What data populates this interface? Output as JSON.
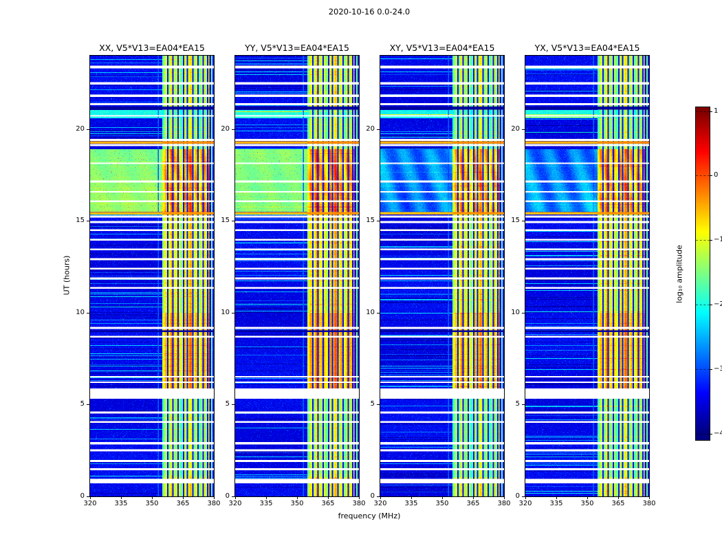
{
  "chart_data": {
    "type": "heatmap",
    "title": "2020-10-16 0.0-24.0",
    "xlabel": "frequency (MHz)",
    "ylabel": "UT (hours)",
    "x_range": [
      320,
      380
    ],
    "x_ticks": [
      320,
      335,
      350,
      365,
      380
    ],
    "y_range": [
      0,
      24
    ],
    "y_ticks": [
      0,
      5,
      10,
      15,
      20
    ],
    "value_range": [
      -4,
      1
    ],
    "colormap": "jet",
    "colorbar": {
      "label": "log₁₀ amplitude",
      "ticks": [
        "1",
        "0",
        "−1",
        "−2",
        "−3",
        "−4"
      ],
      "tick_values": [
        1,
        0,
        -1,
        -2,
        -3,
        -4
      ]
    },
    "panels": [
      {
        "id": "XX",
        "title": "XX, V5*V13=EA04*EA15",
        "bright_band_level": -1.45,
        "band_offset": 0
      },
      {
        "id": "YY",
        "title": "YY, V5*V13=EA04*EA15",
        "bright_band_level": -1.45,
        "band_offset": 0.12
      },
      {
        "id": "XY",
        "title": "XY, V5*V13=EA04*EA15",
        "bright_band_level": -2.75,
        "band_offset": -0.08
      },
      {
        "id": "YX",
        "title": "YX, V5*V13=EA04*EA15",
        "bright_band_level": -2.7,
        "band_offset": 0
      }
    ],
    "background_level": -3.45,
    "noise_amp": 0.55,
    "rfi_band": {
      "f_start": 355.0,
      "f_end": 377.8,
      "segments": [
        [
          0,
          1.05,
          -1.05
        ],
        [
          1.05,
          5.88,
          -1.35
        ],
        [
          5.88,
          10.0,
          -0.6
        ],
        [
          10.0,
          15.45,
          -0.95
        ],
        [
          15.45,
          18.9,
          -0.5
        ],
        [
          18.9,
          20.6,
          -1.35
        ],
        [
          20.6,
          21.04,
          -1.65
        ],
        [
          21.04,
          24,
          -1.2
        ]
      ],
      "notches": [
        357.6,
        360.1,
        362.7,
        365.3,
        367.2,
        369.8,
        372.4,
        374.9,
        377.0
      ],
      "notch_width": 0.32,
      "notch_level": -3.3,
      "edge_line": [
        378.7,
        379.4,
        -1.6
      ],
      "faint_line": [
        352.9,
        353.4,
        -2.9
      ]
    },
    "bright_time_band": [
      15.5,
      18.9
    ],
    "cyan_band": {
      "range": [
        20.6,
        21.04
      ],
      "level": -2.05
    },
    "dark_lines": [
      [
        21.07,
        21.22
      ],
      [
        8.95,
        9.05
      ]
    ],
    "hot_lines": [
      [
        19.2,
        19.33,
        -0.5
      ],
      [
        15.36,
        15.49,
        -0.55
      ]
    ],
    "gaps": [
      [
        23.3,
        23.45
      ],
      [
        22.42,
        22.56
      ],
      [
        21.76,
        21.88
      ],
      [
        21.3,
        21.42
      ],
      [
        20.68,
        20.76
      ],
      [
        19.35,
        19.47
      ],
      [
        19.08,
        19.18
      ],
      [
        18.1,
        18.18
      ],
      [
        17.1,
        17.2
      ],
      [
        16.55,
        16.63
      ],
      [
        16.03,
        16.11
      ],
      [
        15.18,
        15.3
      ],
      [
        14.88,
        14.99
      ],
      [
        14.45,
        14.55
      ],
      [
        13.92,
        14.02
      ],
      [
        13.4,
        13.5
      ],
      [
        12.87,
        12.97
      ],
      [
        12.35,
        12.45
      ],
      [
        11.82,
        11.92
      ],
      [
        11.3,
        11.4
      ],
      [
        9.12,
        9.22
      ],
      [
        8.64,
        8.74
      ],
      [
        6.47,
        6.56
      ],
      [
        6.17,
        6.26
      ],
      [
        5.32,
        5.88
      ],
      [
        4.52,
        4.62
      ],
      [
        4.0,
        4.1
      ],
      [
        2.82,
        2.95
      ],
      [
        2.45,
        2.57
      ],
      [
        1.88,
        1.98
      ],
      [
        1.42,
        1.53
      ],
      [
        0.72,
        0.95
      ]
    ]
  }
}
